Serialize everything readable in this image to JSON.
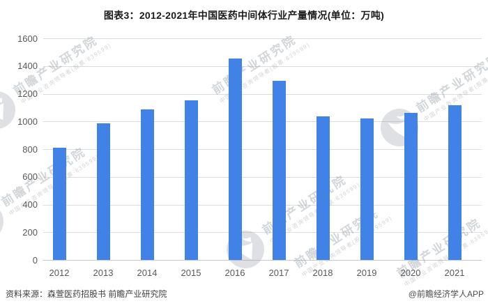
{
  "title": "图表3：2012-2021年中国医药中间体行业产量情况(单位：万吨)",
  "footer": {
    "source": "资料来源：森萱医药招股书 前瞻产业研究院",
    "credit": "@前瞻经济学人APP"
  },
  "watermark": {
    "main": "前瞻产业研究院",
    "sub": "中国产业咨询领导者(股票·839599)",
    "logo_icon": "qianzhan-logo-icon"
  },
  "colors": {
    "bar": "#4182E6",
    "grid": "#DCDCDC",
    "axis_line": "#C8C8C8",
    "axis_text": "#595959",
    "title_text": "#1A1A1A",
    "footer_text": "#404040",
    "watermark": "#8A929C"
  },
  "chart_data": {
    "type": "bar",
    "title": "图表3：2012-2021年中国医药中间体行业产量情况(单位：万吨)",
    "unit": "万吨",
    "categories": [
      "2012",
      "2013",
      "2014",
      "2015",
      "2016",
      "2017",
      "2018",
      "2019",
      "2020",
      "2021"
    ],
    "values": [
      810,
      985,
      1085,
      1150,
      1455,
      1295,
      1035,
      1020,
      1060,
      1115
    ],
    "xlabel": "",
    "ylabel": "",
    "ylim": [
      0,
      1600
    ],
    "ytick_step": 200,
    "yticks": [
      0,
      200,
      400,
      600,
      800,
      1000,
      1200,
      1400,
      1600
    ],
    "grid": true,
    "legend": false
  }
}
